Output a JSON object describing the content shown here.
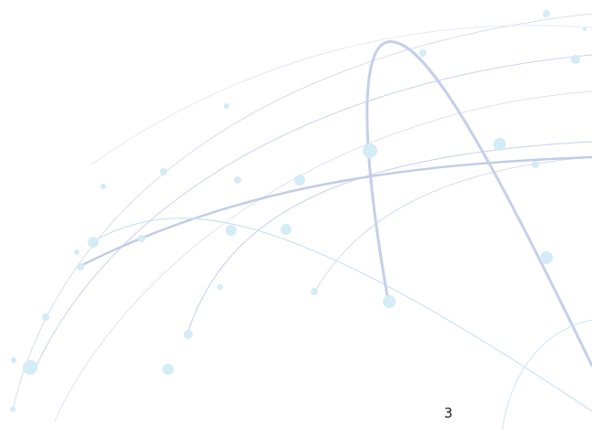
{
  "slide": {
    "page_number": "3"
  }
}
